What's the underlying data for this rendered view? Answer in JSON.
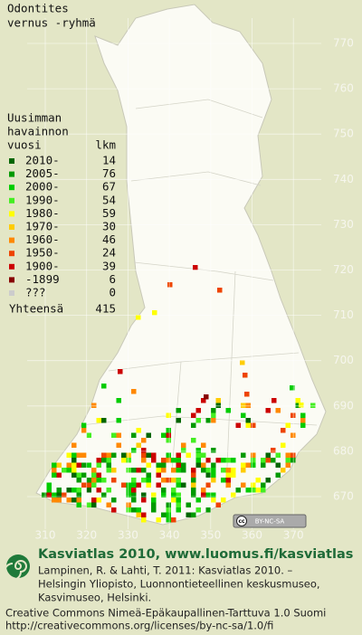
{
  "title": [
    "Odontites",
    "vernus -ryhmä"
  ],
  "legend": {
    "header": [
      "Uusimman",
      "havainnon",
      "vuosi"
    ],
    "count_header": "lkm",
    "entries": [
      {
        "label": "2010-",
        "count": 14,
        "color": "#006600"
      },
      {
        "label": "2005-",
        "count": 76,
        "color": "#009a00"
      },
      {
        "label": "2000-",
        "count": 67,
        "color": "#00cc00"
      },
      {
        "label": "1990-",
        "count": 54,
        "color": "#44ee22"
      },
      {
        "label": "1980-",
        "count": 59,
        "color": "#ffff00"
      },
      {
        "label": "1970-",
        "count": 30,
        "color": "#ffcc00"
      },
      {
        "label": "1960-",
        "count": 46,
        "color": "#ff8800"
      },
      {
        "label": "1950-",
        "count": 24,
        "color": "#ee4400"
      },
      {
        "label": "1900-",
        "count": 39,
        "color": "#cc0000"
      },
      {
        "label": "-1899",
        "count": 6,
        "color": "#880000"
      },
      {
        "label": "???",
        "count": 0,
        "color": "#cccccc"
      }
    ],
    "total_label": "Yhteensä",
    "total": 415
  },
  "x_labels": [
    "310",
    "320",
    "330",
    "340",
    "350",
    "360",
    "370"
  ],
  "y_labels": [
    "770",
    "760",
    "750",
    "740",
    "730",
    "720",
    "710",
    "700",
    "690",
    "680",
    "670"
  ],
  "badge": {
    "cc": "cc",
    "text": "BY-NC-SA"
  },
  "footer": {
    "brand": "Kasviatlas 2010, www.luomus.fi/kasviatlas",
    "citation": [
      "Lampinen, R. & Lahti, T. 2011: Kasviatlas 2010. –",
      "Helsingin Yliopisto, Luonnontieteellinen keskusmuseo,",
      "Kasvimuseo, Helsinki."
    ],
    "license": [
      "Creative Commons Nimeä-Epäkaupallinen-Tarttuva 1.0 Suomi",
      "http://creativecommons.org/licenses/by-nc-sa/1.0/fi"
    ]
  }
}
